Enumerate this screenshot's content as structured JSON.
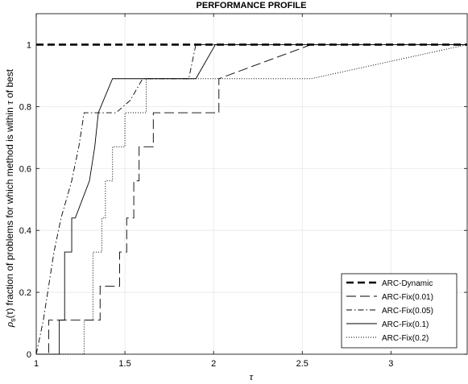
{
  "chart_data": {
    "type": "line",
    "title": "PERFORMANCE PROFILE",
    "xlabel": "τ",
    "ylabel_parts": [
      "ρ",
      "s",
      "(τ) fraction of problems for which method is within  ",
      "τ",
      " of best"
    ],
    "xlim": [
      1,
      3.43
    ],
    "ylim": [
      0,
      1.1
    ],
    "xticks": [
      1,
      1.5,
      2,
      2.5,
      3
    ],
    "xtick_labels": [
      "1",
      "1.5",
      "2",
      "2.5",
      "3"
    ],
    "yticks": [
      0,
      0.2,
      0.4,
      0.6,
      0.8,
      1
    ],
    "ytick_labels": [
      "0",
      "0.2",
      "0.4",
      "0.6",
      "0.8",
      "1"
    ],
    "grid": true,
    "legend_position": "bottom-right",
    "series": [
      {
        "name": "ARC-Dynamic",
        "style": "dash-thick",
        "x": [
          1,
          3.43
        ],
        "y": [
          1,
          1
        ]
      },
      {
        "name": "ARC-Fix(0.01)",
        "style": "long-dash",
        "x": [
          1,
          1.07,
          1.07,
          1.36,
          1.36,
          1.47,
          1.47,
          1.51,
          1.51,
          1.55,
          1.55,
          1.58,
          1.58,
          1.66,
          1.66,
          1.72,
          1.72,
          1.9,
          1.9,
          2.03,
          2.03,
          2.55,
          3.43
        ],
        "y": [
          0,
          0,
          0.11,
          0.11,
          0.22,
          0.22,
          0.33,
          0.33,
          0.44,
          0.44,
          0.56,
          0.56,
          0.67,
          0.67,
          0.78,
          0.78,
          0.78,
          0.78,
          0.78,
          0.78,
          0.89,
          1,
          1
        ]
      },
      {
        "name": "ARC-Fix(0.05)",
        "style": "dash-dot",
        "x": [
          1,
          1.04,
          1.04,
          1.07,
          1.07,
          1.1,
          1.1,
          1.14,
          1.14,
          1.2,
          1.2,
          1.24,
          1.24,
          1.27,
          1.27,
          1.3,
          1.3,
          1.45,
          1.45,
          1.53,
          1.53,
          1.6,
          1.6,
          1.86,
          1.86,
          1.9,
          1.9,
          3.43
        ],
        "y": [
          0,
          0.11,
          0.11,
          0.22,
          0.22,
          0.33,
          0.33,
          0.44,
          0.44,
          0.56,
          0.56,
          0.67,
          0.67,
          0.78,
          0.78,
          0.78,
          0.78,
          0.78,
          0.78,
          0.82,
          0.82,
          0.89,
          0.89,
          0.89,
          0.89,
          1,
          1,
          1
        ]
      },
      {
        "name": "ARC-Fix(0.1)",
        "style": "solid",
        "x": [
          1,
          1.13,
          1.13,
          1.16,
          1.16,
          1.2,
          1.2,
          1.22,
          1.22,
          1.3,
          1.3,
          1.33,
          1.33,
          1.35,
          1.35,
          1.43,
          1.43,
          1.9,
          1.9,
          2.01,
          2.01,
          3.43
        ],
        "y": [
          0,
          0,
          0.11,
          0.11,
          0.33,
          0.33,
          0.44,
          0.44,
          0.44,
          0.56,
          0.56,
          0.67,
          0.67,
          0.78,
          0.78,
          0.89,
          0.89,
          0.89,
          0.89,
          1,
          1,
          1
        ]
      },
      {
        "name": "ARC-Fix(0.2)",
        "style": "dotted",
        "x": [
          1,
          1.27,
          1.27,
          1.32,
          1.32,
          1.37,
          1.37,
          1.39,
          1.39,
          1.43,
          1.43,
          1.5,
          1.5,
          1.62,
          1.62,
          1.7,
          1.7,
          2.0,
          2.0,
          2.55,
          3.43
        ],
        "y": [
          0,
          0,
          0.11,
          0.11,
          0.33,
          0.33,
          0.44,
          0.44,
          0.56,
          0.56,
          0.67,
          0.67,
          0.78,
          0.78,
          0.89,
          0.89,
          0.89,
          0.89,
          0.89,
          0.89,
          1
        ]
      }
    ]
  }
}
